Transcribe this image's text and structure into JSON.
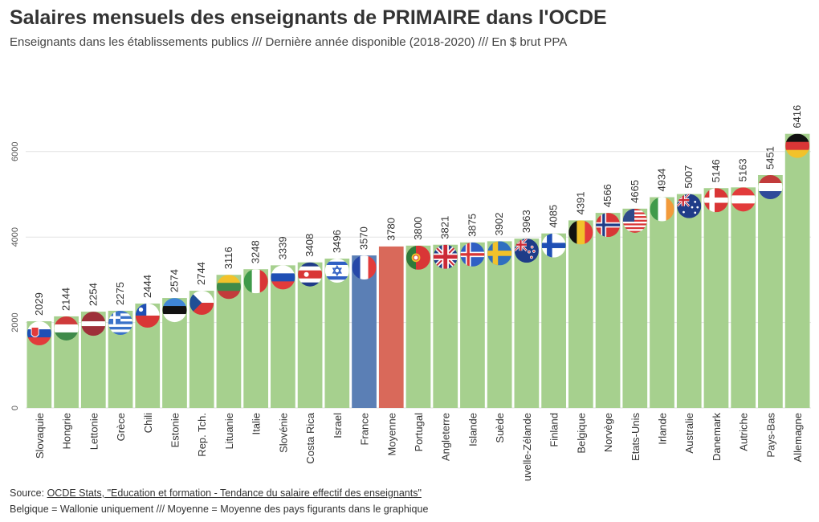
{
  "header": {
    "title": "Salaires mensuels des enseignants de PRIMAIRE dans l'OCDE",
    "subtitle": "Enseignants dans les établissements publics /// Dernière année disponible (2018-2020) /// En $ brut PPA"
  },
  "footer": {
    "source_prefix": "Source: ",
    "source_link": "OCDE Stats, \"Education et formation - Tendance du salaire effectif des enseignants\"",
    "note": "Belgique = Wallonie uniquement /// Moyenne = Moyenne des pays figurants dans le graphique"
  },
  "colors": {
    "bar_default": "#a6d08e",
    "bar_france": "#5b7fb5",
    "bar_average": "#d9695a",
    "grid": "#e3e3e3"
  },
  "chart_data": {
    "type": "bar",
    "categories": [
      "Slovaquie",
      "Hongrie",
      "Lettonie",
      "Grèce",
      "Chili",
      "Estonie",
      "Rep. Tch.",
      "Lituanie",
      "Italie",
      "Slovénie",
      "Costa Rica",
      "Israel",
      "France",
      "Moyenne",
      "Portugal",
      "Angleterre",
      "Islande",
      "Suède",
      "Nouvelle-Zélande",
      "Finland",
      "Belgique",
      "Norvège",
      "Etats-Unis",
      "Irlande",
      "Australie",
      "Danemark",
      "Autriche",
      "Pays-Bas",
      "Allemagne"
    ],
    "values": [
      2029,
      2144,
      2254,
      2275,
      2444,
      2574,
      2744,
      3116,
      3248,
      3339,
      3408,
      3496,
      3570,
      3780,
      3800,
      3821,
      3875,
      3902,
      3963,
      4085,
      4391,
      4566,
      4665,
      4934,
      5007,
      5146,
      5163,
      5451,
      6416
    ],
    "highlight": {
      "France": "bar_france",
      "Moyenne": "bar_average"
    },
    "flags": [
      "slovakia-flag-icon",
      "hungary-flag-icon",
      "latvia-flag-icon",
      "greece-flag-icon",
      "chile-flag-icon",
      "estonia-flag-icon",
      "czech-flag-icon",
      "lithuania-flag-icon",
      "italy-flag-icon",
      "slovenia-flag-icon",
      "costa-rica-flag-icon",
      "israel-flag-icon",
      "france-flag-icon",
      "",
      "portugal-flag-icon",
      "england-flag-icon",
      "iceland-flag-icon",
      "sweden-flag-icon",
      "new-zealand-flag-icon",
      "finland-flag-icon",
      "belgium-flag-icon",
      "norway-flag-icon",
      "usa-flag-icon",
      "ireland-flag-icon",
      "australia-flag-icon",
      "denmark-flag-icon",
      "austria-flag-icon",
      "netherlands-flag-icon",
      "germany-flag-icon"
    ],
    "yticks": [
      0,
      2000,
      4000,
      6000
    ],
    "ylim": [
      0,
      6500
    ],
    "xlabel": "",
    "ylabel": "",
    "grid": true
  }
}
